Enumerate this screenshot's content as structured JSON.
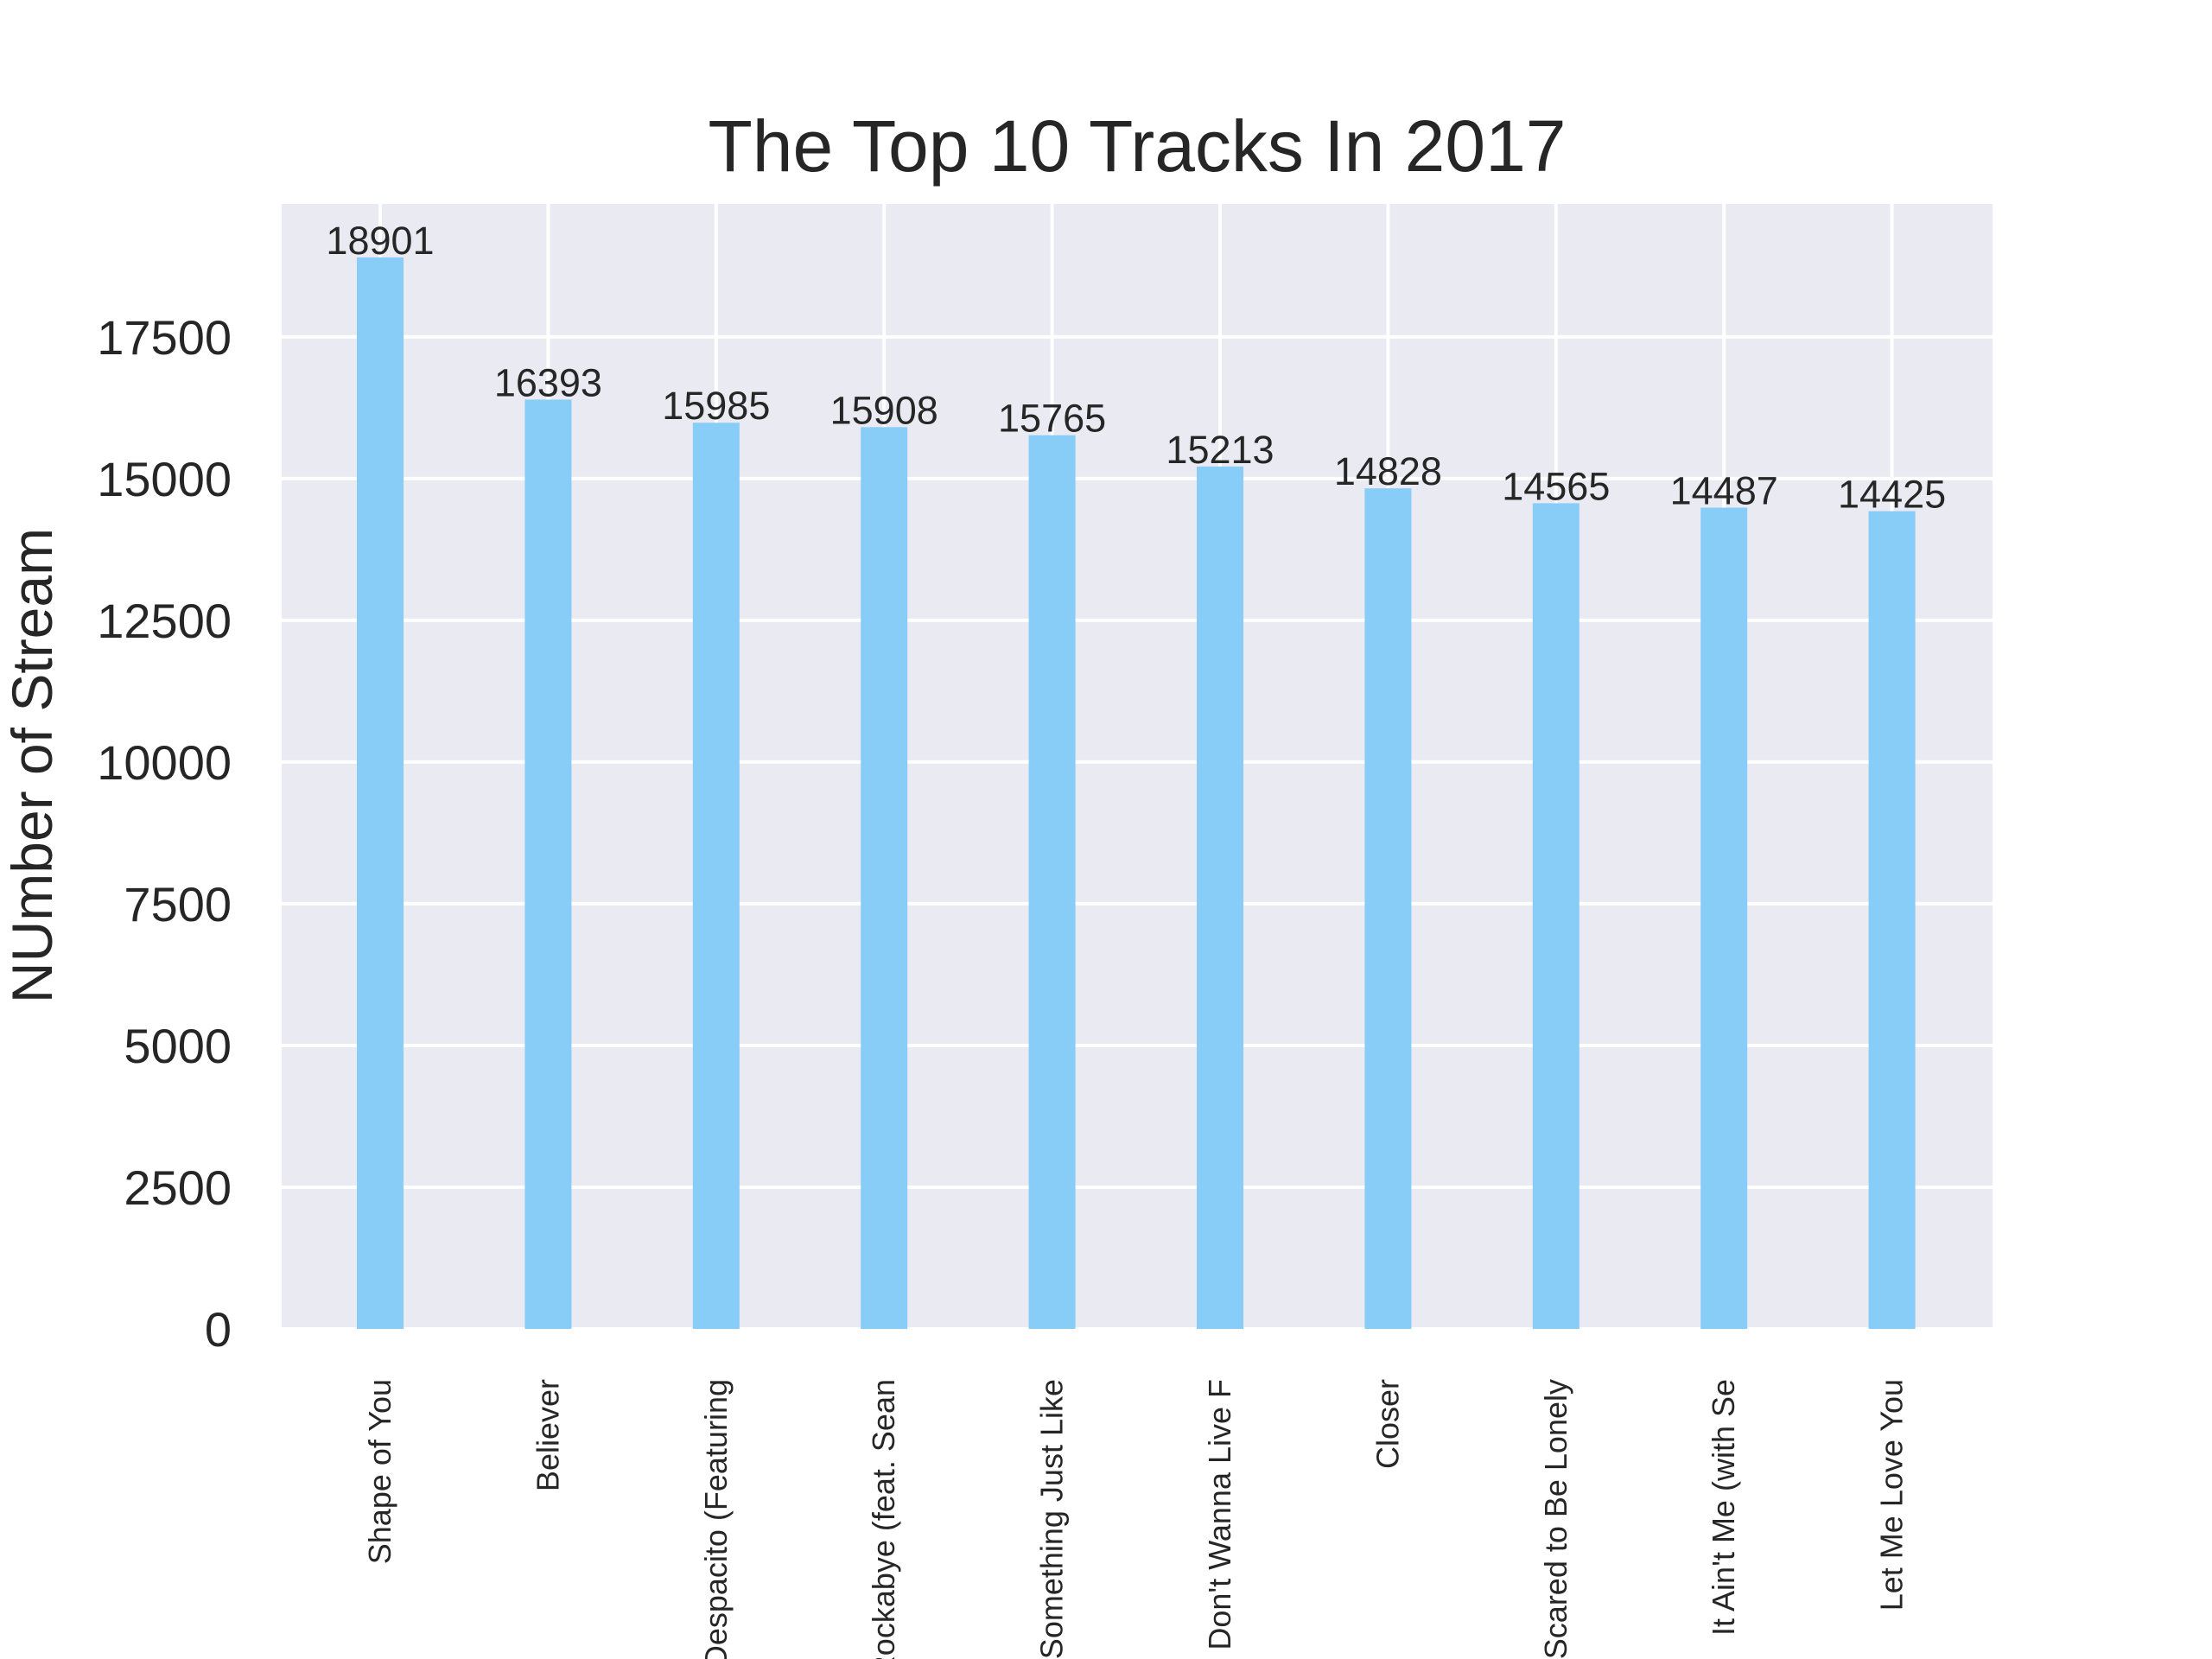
{
  "colors": {
    "bar": "#87cdf8",
    "plot_bg": "#eaeaf2",
    "grid": "#ffffff",
    "text": "#262626"
  },
  "chart_data": {
    "type": "bar",
    "title": "The Top 10 Tracks In 2017",
    "xlabel": "",
    "ylabel": "NUmber of Stream",
    "categories": [
      "Shape of You",
      "Believer",
      "Despacito (Featuring",
      "Rockabye (feat. Sean",
      "Something Just Like",
      "I Don't Wanna Live F",
      "Closer",
      "Scared to Be Lonely",
      "It Ain't Me (with Se",
      "Let Me Love You"
    ],
    "values": [
      18901,
      16393,
      15985,
      15908,
      15765,
      15213,
      14828,
      14565,
      14487,
      14425
    ],
    "ylim": [
      0,
      19845
    ],
    "yticks": [
      0,
      2500,
      5000,
      7500,
      10000,
      12500,
      15000,
      17500
    ],
    "grid": true,
    "data_labels": true
  }
}
